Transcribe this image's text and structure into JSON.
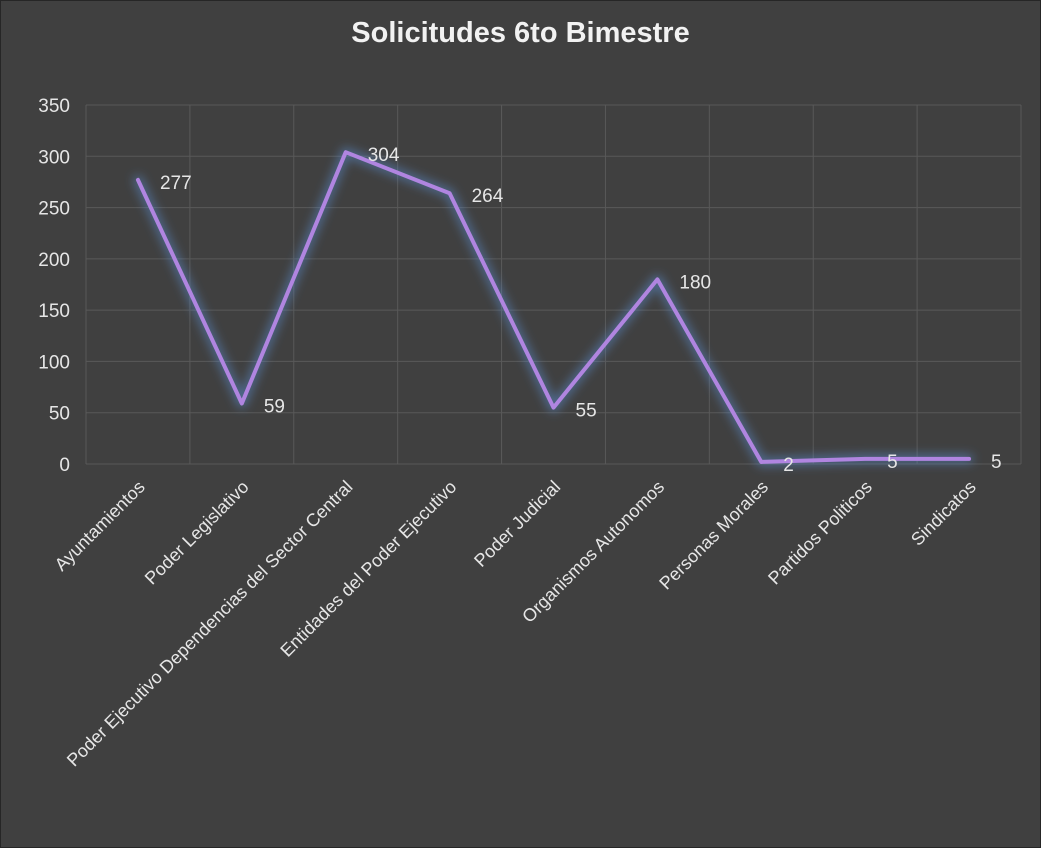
{
  "chart_data": {
    "type": "line",
    "title": "Solicitudes 6to Bimestre",
    "categories": [
      "Ayuntamientos",
      "Poder Legislativo",
      "Poder Ejecutivo Dependencias del Sector Central",
      "Entidades del Poder Ejecutivo",
      "Poder Judicial",
      "Organismos Autonomos",
      "Personas Morales",
      "Partidos Politicos",
      "Sindicatos"
    ],
    "series": [
      {
        "values": [
          277,
          59,
          304,
          264,
          55,
          180,
          2,
          5,
          5
        ]
      }
    ],
    "ylim": [
      0,
      350
    ],
    "yticks": [
      0,
      50,
      100,
      150,
      200,
      250,
      300,
      350
    ],
    "grid": true,
    "data_labels": true,
    "colors": {
      "background": "#404040",
      "line": "#b085e0",
      "glow": "#5b8fd6",
      "grid": "#595959",
      "text": "#e6e6e6"
    }
  }
}
